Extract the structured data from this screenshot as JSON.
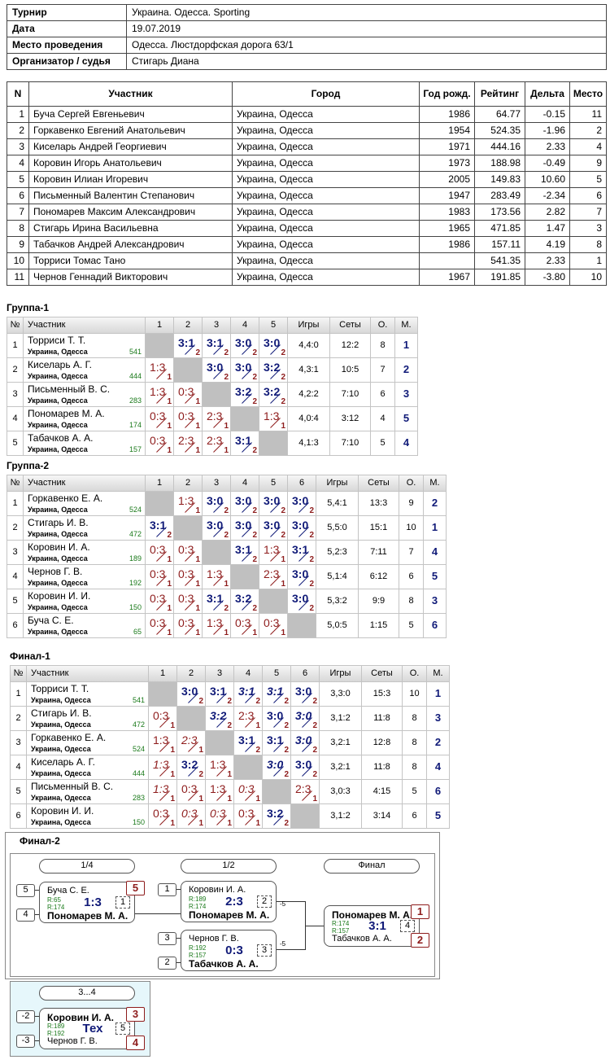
{
  "info": {
    "rows": [
      [
        "Турнир",
        "Украина. Одесса. Sporting"
      ],
      [
        "Дата",
        "19.07.2019"
      ],
      [
        "Место проведения",
        "Одесса. Люстдорфская дорога 63/1"
      ],
      [
        "Организатор / судья",
        "Стигарь Диана"
      ]
    ]
  },
  "participants": {
    "header": [
      "N",
      "Участник",
      "Город",
      "Год рожд.",
      "Рейтинг",
      "Дельта",
      "Место"
    ],
    "rows": [
      [
        "1",
        "Буча Сергей Евгеньевич",
        "Украина, Одесса",
        "1986",
        "64.77",
        "-0.15",
        "11"
      ],
      [
        "2",
        "Горкавенко Евгений Анатольевич",
        "Украина, Одесса",
        "1954",
        "524.35",
        "-1.96",
        "2"
      ],
      [
        "3",
        "Киселарь Андрей Георгиевич",
        "Украина, Одесса",
        "1971",
        "444.16",
        "2.33",
        "4"
      ],
      [
        "4",
        "Коровин Игорь Анатольевич",
        "Украина, Одесса",
        "1973",
        "188.98",
        "-0.49",
        "9"
      ],
      [
        "5",
        "Коровин Илиан Игоревич",
        "Украина, Одесса",
        "2005",
        "149.83",
        "10.60",
        "5"
      ],
      [
        "6",
        "Письменный Валентин Степанович",
        "Украина, Одесса",
        "1947",
        "283.49",
        "-2.34",
        "6"
      ],
      [
        "7",
        "Пономарев Максим Александрович",
        "Украина, Одесса",
        "1983",
        "173.56",
        "2.82",
        "7"
      ],
      [
        "8",
        "Стигарь Ирина Васильевна",
        "Украина, Одесса",
        "1965",
        "471.85",
        "1.47",
        "3"
      ],
      [
        "9",
        "Табачков Андрей Александрович",
        "Украина, Одесса",
        "1986",
        "157.11",
        "4.19",
        "8"
      ],
      [
        "10",
        "Торриси Томас Тано",
        "Украина, Одесса",
        null,
        "541.35",
        "2.33",
        "1"
      ],
      [
        "11",
        "Чернов Геннадий Викторович",
        "Украина, Одесса",
        "1967",
        "191.85",
        "-3.80",
        "10"
      ]
    ]
  },
  "groups": [
    {
      "title": "Группа-1",
      "header": [
        "№",
        "Участник",
        "1",
        "2",
        "3",
        "4",
        "5",
        "Игры",
        "Сеты",
        "О.",
        "М."
      ],
      "rows": [
        {
          "n": 1,
          "name": "Торриси Т. Т.",
          "city": "Украина, Одесса",
          "rating": 541,
          "cells": [
            null,
            {
              "score": "3:1",
              "points": 2
            },
            {
              "score": "3:1",
              "points": 2
            },
            {
              "score": "3:0",
              "points": 2
            },
            {
              "score": "3:0",
              "points": 2
            }
          ],
          "games": "4,4:0",
          "sets": "12:2",
          "total": 8,
          "place": 1
        },
        {
          "n": 2,
          "name": "Киселарь А. Г.",
          "city": "Украина, Одесса",
          "rating": 444,
          "cells": [
            {
              "score": "1:3",
              "points": 1
            },
            null,
            {
              "score": "3:0",
              "points": 2
            },
            {
              "score": "3:0",
              "points": 2
            },
            {
              "score": "3:2",
              "points": 2
            }
          ],
          "games": "4,3:1",
          "sets": "10:5",
          "total": 7,
          "place": 2
        },
        {
          "n": 3,
          "name": "Письменный В. С.",
          "city": "Украина, Одесса",
          "rating": 283,
          "cells": [
            {
              "score": "1:3",
              "points": 1
            },
            {
              "score": "0:3",
              "points": 1
            },
            null,
            {
              "score": "3:2",
              "points": 2
            },
            {
              "score": "3:2",
              "points": 2
            }
          ],
          "games": "4,2:2",
          "sets": "7:10",
          "total": 6,
          "place": 3
        },
        {
          "n": 4,
          "name": "Пономарев М. А.",
          "city": "Украина, Одесса",
          "rating": 174,
          "cells": [
            {
              "score": "0:3",
              "points": 1
            },
            {
              "score": "0:3",
              "points": 1
            },
            {
              "score": "2:3",
              "points": 1
            },
            null,
            {
              "score": "1:3",
              "points": 1
            }
          ],
          "games": "4,0:4",
          "sets": "3:12",
          "total": 4,
          "place": 5
        },
        {
          "n": 5,
          "name": "Табачков А. А.",
          "city": "Украина, Одесса",
          "rating": 157,
          "cells": [
            {
              "score": "0:3",
              "points": 1
            },
            {
              "score": "2:3",
              "points": 1
            },
            {
              "score": "2:3",
              "points": 1
            },
            {
              "score": "3:1",
              "points": 2
            },
            null
          ],
          "games": "4,1:3",
          "sets": "7:10",
          "total": 5,
          "place": 4
        }
      ]
    },
    {
      "title": "Группа-2",
      "header": [
        "№",
        "Участник",
        "1",
        "2",
        "3",
        "4",
        "5",
        "6",
        "Игры",
        "Сеты",
        "О.",
        "М."
      ],
      "rows": [
        {
          "n": 1,
          "name": "Горкавенко Е. А.",
          "city": "Украина, Одесса",
          "rating": 524,
          "cells": [
            null,
            {
              "score": "1:3",
              "points": 1
            },
            {
              "score": "3:0",
              "points": 2
            },
            {
              "score": "3:0",
              "points": 2
            },
            {
              "score": "3:0",
              "points": 2
            },
            {
              "score": "3:0",
              "points": 2
            }
          ],
          "games": "5,4:1",
          "sets": "13:3",
          "total": 9,
          "place": 2
        },
        {
          "n": 2,
          "name": "Стигарь И. В.",
          "city": "Украина, Одесса",
          "rating": 472,
          "cells": [
            {
              "score": "3:1",
              "points": 2
            },
            null,
            {
              "score": "3:0",
              "points": 2
            },
            {
              "score": "3:0",
              "points": 2
            },
            {
              "score": "3:0",
              "points": 2
            },
            {
              "score": "3:0",
              "points": 2
            }
          ],
          "games": "5,5:0",
          "sets": "15:1",
          "total": 10,
          "place": 1
        },
        {
          "n": 3,
          "name": "Коровин И. А.",
          "city": "Украина, Одесса",
          "rating": 189,
          "cells": [
            {
              "score": "0:3",
              "points": 1
            },
            {
              "score": "0:3",
              "points": 1
            },
            null,
            {
              "score": "3:1",
              "points": 2
            },
            {
              "score": "1:3",
              "points": 1
            },
            {
              "score": "3:1",
              "points": 2
            }
          ],
          "games": "5,2:3",
          "sets": "7:11",
          "total": 7,
          "place": 4
        },
        {
          "n": 4,
          "name": "Чернов Г. В.",
          "city": "Украина, Одесса",
          "rating": 192,
          "cells": [
            {
              "score": "0:3",
              "points": 1
            },
            {
              "score": "0:3",
              "points": 1
            },
            {
              "score": "1:3",
              "points": 1
            },
            null,
            {
              "score": "2:3",
              "points": 1
            },
            {
              "score": "3:0",
              "points": 2
            }
          ],
          "games": "5,1:4",
          "sets": "6:12",
          "total": 6,
          "place": 5
        },
        {
          "n": 5,
          "name": "Коровин И. И.",
          "city": "Украина, Одесса",
          "rating": 150,
          "cells": [
            {
              "score": "0:3",
              "points": 1
            },
            {
              "score": "0:3",
              "points": 1
            },
            {
              "score": "3:1",
              "points": 2
            },
            {
              "score": "3:2",
              "points": 2
            },
            null,
            {
              "score": "3:0",
              "points": 2
            }
          ],
          "games": "5,3:2",
          "sets": "9:9",
          "total": 8,
          "place": 3
        },
        {
          "n": 6,
          "name": "Буча С. Е.",
          "city": "Украина, Одесса",
          "rating": 65,
          "cells": [
            {
              "score": "0:3",
              "points": 1
            },
            {
              "score": "0:3",
              "points": 1
            },
            {
              "score": "1:3",
              "points": 1
            },
            {
              "score": "0:3",
              "points": 1
            },
            {
              "score": "0:3",
              "points": 1
            },
            null
          ],
          "games": "5,0:5",
          "sets": "1:15",
          "total": 5,
          "place": 6
        }
      ]
    },
    {
      "title": "Финал-1",
      "header": [
        "№",
        "Участник",
        "1",
        "2",
        "3",
        "4",
        "5",
        "6",
        "Игры",
        "Сеты",
        "О.",
        "М."
      ],
      "rows": [
        {
          "n": 1,
          "name": "Торриси Т. Т.",
          "city": "Украина, Одесса",
          "rating": 541,
          "cells": [
            null,
            {
              "score": "3:0",
              "points": 2
            },
            {
              "score": "3:1",
              "points": 2
            },
            {
              "score": "3:1",
              "points": 2,
              "italic": true
            },
            {
              "score": "3:1",
              "points": 2,
              "italic": true
            },
            {
              "score": "3:0",
              "points": 2
            }
          ],
          "games": "3,3:0",
          "sets": "15:3",
          "total": 10,
          "place": 1
        },
        {
          "n": 2,
          "name": "Стигарь И. В.",
          "city": "Украина, Одесса",
          "rating": 472,
          "cells": [
            {
              "score": "0:3",
              "points": 1
            },
            null,
            {
              "score": "3:2",
              "points": 2,
              "italic": true
            },
            {
              "score": "2:3",
              "points": 1
            },
            {
              "score": "3:0",
              "points": 2
            },
            {
              "score": "3:0",
              "points": 2,
              "italic": true
            }
          ],
          "games": "3,1:2",
          "sets": "11:8",
          "total": 8,
          "place": 3
        },
        {
          "n": 3,
          "name": "Горкавенко Е. А.",
          "city": "Украина, Одесса",
          "rating": 524,
          "cells": [
            {
              "score": "1:3",
              "points": 1
            },
            {
              "score": "2:3",
              "points": 1,
              "italic": true
            },
            null,
            {
              "score": "3:1",
              "points": 2
            },
            {
              "score": "3:1",
              "points": 2
            },
            {
              "score": "3:0",
              "points": 2,
              "italic": true
            }
          ],
          "games": "3,2:1",
          "sets": "12:8",
          "total": 8,
          "place": 2
        },
        {
          "n": 4,
          "name": "Киселарь А. Г.",
          "city": "Украина, Одесса",
          "rating": 444,
          "cells": [
            {
              "score": "1:3",
              "points": 1,
              "italic": true
            },
            {
              "score": "3:2",
              "points": 2
            },
            {
              "score": "1:3",
              "points": 1
            },
            null,
            {
              "score": "3:0",
              "points": 2,
              "italic": true
            },
            {
              "score": "3:0",
              "points": 2
            }
          ],
          "games": "3,2:1",
          "sets": "11:8",
          "total": 8,
          "place": 4
        },
        {
          "n": 5,
          "name": "Письменный В. С.",
          "city": "Украина, Одесса",
          "rating": 283,
          "cells": [
            {
              "score": "1:3",
              "points": 1,
              "italic": true
            },
            {
              "score": "0:3",
              "points": 1
            },
            {
              "score": "1:3",
              "points": 1
            },
            {
              "score": "0:3",
              "points": 1,
              "italic": true
            },
            null,
            {
              "score": "2:3",
              "points": 1
            }
          ],
          "games": "3,0:3",
          "sets": "4:15",
          "total": 5,
          "place": 6
        },
        {
          "n": 6,
          "name": "Коровин И. И.",
          "city": "Украина, Одесса",
          "rating": 150,
          "cells": [
            {
              "score": "0:3",
              "points": 1
            },
            {
              "score": "0:3",
              "points": 1,
              "italic": true
            },
            {
              "score": "0:3",
              "points": 1,
              "italic": true
            },
            {
              "score": "0:3",
              "points": 1
            },
            {
              "score": "3:2",
              "points": 2
            },
            null
          ],
          "games": "3,1:2",
          "sets": "3:14",
          "total": 6,
          "place": 5
        }
      ]
    }
  ],
  "final2": {
    "title": "Финал-2",
    "rounds": [
      "1/4",
      "1/2",
      "Финал"
    ],
    "third_round": "3...4",
    "matches": [
      {
        "number": 1,
        "score": "1:3",
        "players": [
          {
            "seed": 5,
            "name": "Буча С. Е.",
            "rating": "R:65",
            "place": 5
          },
          {
            "seed": 4,
            "name": "Пономарев М. А.",
            "rating": "R:174",
            "winner": true
          }
        ]
      },
      {
        "number": 2,
        "score": "2:3",
        "note": -5,
        "players": [
          {
            "seed": 1,
            "name": "Коровин И. А.",
            "rating": "R:189"
          },
          {
            "name": "Пономарев М. А.",
            "rating": "R:174",
            "winner": true
          }
        ]
      },
      {
        "number": 3,
        "score": "0:3",
        "note": -5,
        "players": [
          {
            "seed": 3,
            "name": "Чернов Г. В.",
            "rating": "R:192"
          },
          {
            "seed": 2,
            "name": "Табачков А. А.",
            "rating": "R:157",
            "winner": true
          }
        ]
      },
      {
        "number": 4,
        "score": "3:1",
        "players": [
          {
            "name": "Пономарев М. А.",
            "rating": "R:174",
            "winner": true,
            "place": 1
          },
          {
            "name": "Табачков А. А.",
            "rating": "R:157",
            "place": 2
          }
        ]
      },
      {
        "number": 5,
        "score": "Тех",
        "players": [
          {
            "seed": -2,
            "name": "Коровин И. А.",
            "rating": "R:189",
            "winner": true,
            "place": 3
          },
          {
            "seed": -3,
            "name": "Чернов Г. В.",
            "rating": "R:192",
            "place": 4
          }
        ]
      }
    ]
  }
}
